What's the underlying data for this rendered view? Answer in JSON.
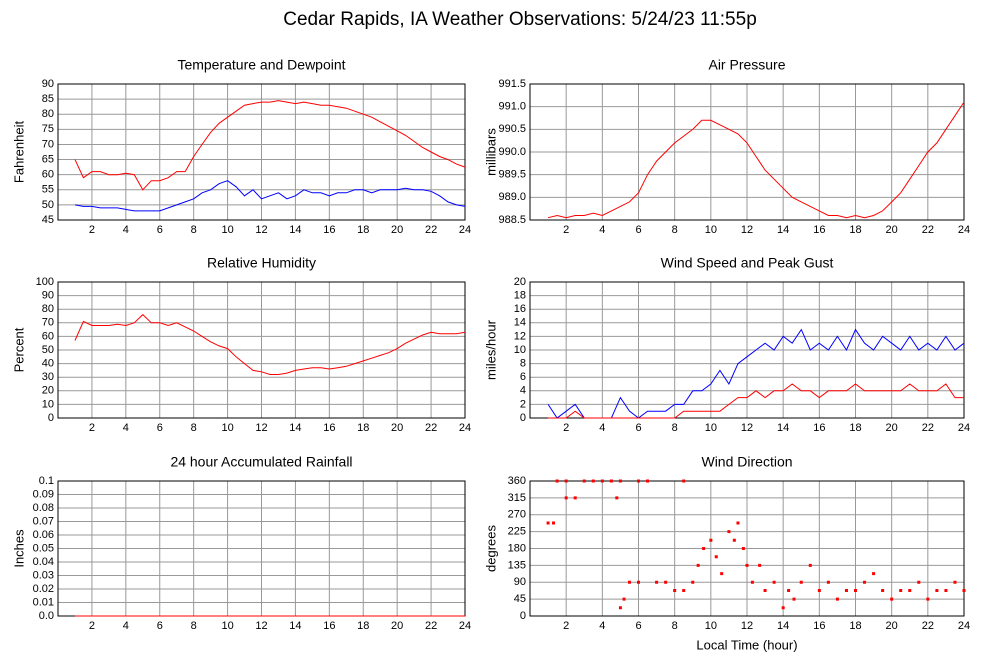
{
  "title": "Cedar Rapids, IA Weather Observations: 5/24/23 11:55p",
  "chart_data": [
    {
      "type": "line",
      "title": "Temperature and Dewpoint",
      "ylabel": "Fahrenheit",
      "x": [
        1,
        1.5,
        2,
        2.5,
        3,
        3.5,
        4,
        4.5,
        5,
        5.5,
        6,
        6.5,
        7,
        7.5,
        8,
        8.5,
        9,
        9.5,
        10,
        10.5,
        11,
        11.5,
        12,
        12.5,
        13,
        13.5,
        14,
        14.5,
        15,
        15.5,
        16,
        16.5,
        17,
        17.5,
        18,
        18.5,
        19,
        19.5,
        20,
        20.5,
        21,
        21.5,
        22,
        22.5,
        23,
        23.5,
        24
      ],
      "series": [
        {
          "color": "#ff0000",
          "values": [
            65,
            59,
            61,
            61,
            60,
            60,
            60.5,
            60,
            55,
            58,
            58,
            59,
            61,
            61,
            66,
            70,
            74,
            77,
            79,
            81,
            83,
            83.5,
            84,
            84,
            84.5,
            84,
            83.5,
            84,
            83.5,
            83,
            83,
            82.5,
            82,
            81,
            80,
            79,
            77.5,
            76,
            74.5,
            73,
            71,
            69,
            67.5,
            66,
            65,
            63.5,
            62.5
          ]
        },
        {
          "color": "#0000ff",
          "values": [
            50,
            49.5,
            49.5,
            49,
            49,
            49,
            48.5,
            48,
            48,
            48,
            48,
            49,
            50,
            51,
            52,
            54,
            55,
            57,
            58,
            56,
            53,
            55,
            52,
            53,
            54,
            52,
            53,
            55,
            54,
            54,
            53,
            54,
            54,
            55,
            55,
            54,
            55,
            55,
            55,
            55.5,
            55,
            55,
            54.5,
            53,
            51,
            50,
            49.5
          ]
        }
      ],
      "xlim": [
        0,
        24
      ],
      "xticks": [
        2,
        4,
        6,
        8,
        10,
        12,
        14,
        16,
        18,
        20,
        22,
        24
      ],
      "ylim": [
        45,
        90
      ],
      "yticks": [
        45,
        50,
        55,
        60,
        65,
        70,
        75,
        80,
        85,
        90
      ],
      "grid": true
    },
    {
      "type": "line",
      "title": "Air Pressure",
      "ylabel": "millibars",
      "x": [
        1,
        1.5,
        2,
        2.5,
        3,
        3.5,
        4,
        4.5,
        5,
        5.5,
        6,
        6.5,
        7,
        7.5,
        8,
        8.5,
        9,
        9.5,
        10,
        10.5,
        11,
        11.5,
        12,
        12.5,
        13,
        13.5,
        14,
        14.5,
        15,
        15.5,
        16,
        16.5,
        17,
        17.5,
        18,
        18.5,
        19,
        19.5,
        20,
        20.5,
        21,
        21.5,
        22,
        22.5,
        23,
        23.5,
        24
      ],
      "series": [
        {
          "color": "#ff0000",
          "values": [
            988.55,
            988.6,
            988.55,
            988.6,
            988.6,
            988.65,
            988.6,
            988.7,
            988.8,
            988.9,
            989.1,
            989.5,
            989.8,
            990.0,
            990.2,
            990.35,
            990.5,
            990.7,
            990.7,
            990.6,
            990.5,
            990.4,
            990.2,
            989.9,
            989.6,
            989.4,
            989.2,
            989.0,
            988.9,
            988.8,
            988.7,
            988.6,
            988.6,
            988.55,
            988.6,
            988.55,
            988.6,
            988.7,
            988.9,
            989.1,
            989.4,
            989.7,
            990.0,
            990.2,
            990.5,
            990.8,
            991.1
          ]
        }
      ],
      "xlim": [
        0,
        24
      ],
      "xticks": [
        2,
        4,
        6,
        8,
        10,
        12,
        14,
        16,
        18,
        20,
        22,
        24
      ],
      "ylim": [
        988.5,
        991.5
      ],
      "yticks": [
        988.5,
        {
          "value": 989,
          "label": "989.0"
        },
        989.5,
        {
          "value": 990,
          "label": "990.0"
        },
        990.5,
        {
          "value": 991,
          "label": "991.0"
        },
        991.5
      ],
      "grid": true
    },
    {
      "type": "line",
      "title": "Relative Humidity",
      "ylabel": "Percent",
      "x": [
        1,
        1.5,
        2,
        2.5,
        3,
        3.5,
        4,
        4.5,
        5,
        5.5,
        6,
        6.5,
        7,
        7.5,
        8,
        8.5,
        9,
        9.5,
        10,
        10.5,
        11,
        11.5,
        12,
        12.5,
        13,
        13.5,
        14,
        14.5,
        15,
        15.5,
        16,
        16.5,
        17,
        17.5,
        18,
        18.5,
        19,
        19.5,
        20,
        20.5,
        21,
        21.5,
        22,
        22.5,
        23,
        23.5,
        24
      ],
      "series": [
        {
          "color": "#ff0000",
          "values": [
            57,
            71,
            68,
            68,
            68,
            69,
            68,
            70,
            76,
            70,
            70,
            68,
            70,
            67,
            64,
            60,
            56,
            53,
            51,
            45,
            40,
            35,
            34,
            32,
            32,
            33,
            35,
            36,
            37,
            37,
            36,
            37,
            38,
            40,
            42,
            44,
            46,
            48,
            51,
            55,
            58,
            61,
            63,
            62,
            62,
            62,
            63
          ]
        }
      ],
      "xlim": [
        0,
        24
      ],
      "xticks": [
        2,
        4,
        6,
        8,
        10,
        12,
        14,
        16,
        18,
        20,
        22,
        24
      ],
      "ylim": [
        0,
        100
      ],
      "yticks": [
        0,
        10,
        20,
        30,
        40,
        50,
        60,
        70,
        80,
        90,
        100
      ],
      "grid": true
    },
    {
      "type": "line",
      "title": "Wind Speed and Peak Gust",
      "ylabel": "miles/hour",
      "x": [
        1,
        1.5,
        2,
        2.5,
        3,
        3.5,
        4,
        4.5,
        5,
        5.5,
        6,
        6.5,
        7,
        7.5,
        8,
        8.5,
        9,
        9.5,
        10,
        10.5,
        11,
        11.5,
        12,
        12.5,
        13,
        13.5,
        14,
        14.5,
        15,
        15.5,
        16,
        16.5,
        17,
        17.5,
        18,
        18.5,
        19,
        19.5,
        20,
        20.5,
        21,
        21.5,
        22,
        22.5,
        23,
        23.5,
        24
      ],
      "series": [
        {
          "color": "#0000ff",
          "values": [
            2,
            0,
            1,
            2,
            0,
            0,
            0,
            0,
            3,
            1,
            0,
            1,
            1,
            1,
            2,
            2,
            4,
            4,
            5,
            7,
            5,
            8,
            9,
            10,
            11,
            10,
            12,
            11,
            13,
            10,
            11,
            10,
            12,
            10,
            13,
            11,
            10,
            12,
            11,
            10,
            12,
            10,
            11,
            10,
            12,
            10,
            11
          ]
        },
        {
          "color": "#ff0000",
          "values": [
            0,
            0,
            0,
            1,
            0,
            0,
            0,
            0,
            0,
            0,
            0,
            0,
            0,
            0,
            0,
            1,
            1,
            1,
            1,
            1,
            2,
            3,
            3,
            4,
            3,
            4,
            4,
            5,
            4,
            4,
            3,
            4,
            4,
            4,
            5,
            4,
            4,
            4,
            4,
            4,
            5,
            4,
            4,
            4,
            5,
            3,
            3
          ]
        }
      ],
      "xlim": [
        0,
        24
      ],
      "xticks": [
        2,
        4,
        6,
        8,
        10,
        12,
        14,
        16,
        18,
        20,
        22,
        24
      ],
      "ylim": [
        0,
        20
      ],
      "yticks": [
        0,
        2,
        4,
        6,
        8,
        10,
        12,
        14,
        16,
        18,
        20
      ],
      "grid": true
    },
    {
      "type": "line",
      "title": "24 hour Accumulated Rainfall",
      "ylabel": "Inches",
      "x": [
        1,
        1.5,
        2,
        2.5,
        3,
        3.5,
        4,
        4.5,
        5,
        5.5,
        6,
        6.5,
        7,
        7.5,
        8,
        8.5,
        9,
        9.5,
        10,
        10.5,
        11,
        11.5,
        12,
        12.5,
        13,
        13.5,
        14,
        14.5,
        15,
        15.5,
        16,
        16.5,
        17,
        17.5,
        18,
        18.5,
        19,
        19.5,
        20,
        20.5,
        21,
        21.5,
        22,
        22.5,
        23,
        23.5,
        24
      ],
      "series": [
        {
          "color": "#ff0000",
          "values": [
            0,
            0,
            0,
            0,
            0,
            0,
            0,
            0,
            0,
            0,
            0,
            0,
            0,
            0,
            0,
            0,
            0,
            0,
            0,
            0,
            0,
            0,
            0,
            0,
            0,
            0,
            0,
            0,
            0,
            0,
            0,
            0,
            0,
            0,
            0,
            0,
            0,
            0,
            0,
            0,
            0,
            0,
            0,
            0,
            0,
            0,
            0
          ]
        }
      ],
      "xlim": [
        0,
        24
      ],
      "xticks": [
        2,
        4,
        6,
        8,
        10,
        12,
        14,
        16,
        18,
        20,
        22,
        24
      ],
      "ylim": [
        0,
        0.1
      ],
      "yticks": [
        {
          "value": 0,
          "label": "0.0"
        },
        0.01,
        0.02,
        0.03,
        0.04,
        0.05,
        0.06,
        0.07,
        0.08,
        0.09,
        0.1
      ],
      "grid": true
    },
    {
      "type": "scatter",
      "title": "Wind Direction",
      "ylabel": "degrees",
      "xlabel": "Local Time (hour)",
      "x": [
        1,
        1.3,
        1.5,
        2,
        2,
        2.5,
        3,
        3.5,
        4,
        4.5,
        4.8,
        5,
        5,
        5.2,
        5.5,
        6,
        6,
        6.5,
        7,
        7.5,
        8,
        8.5,
        8.5,
        9,
        9.3,
        9.6,
        10,
        10.3,
        10.6,
        11,
        11.3,
        11.5,
        11.8,
        12,
        12.3,
        12.7,
        13,
        13.5,
        14,
        14.3,
        14.6,
        15,
        15.5,
        16,
        16.5,
        17,
        17.5,
        18,
        18.5,
        19,
        19.5,
        20,
        20.5,
        21,
        21.5,
        22,
        22.5,
        23,
        23.5,
        24
      ],
      "series": [
        {
          "color": "#ff0000",
          "values": [
            248,
            248,
            360,
            360,
            315,
            315,
            360,
            360,
            360,
            360,
            315,
            360,
            22,
            45,
            90,
            90,
            360,
            360,
            90,
            90,
            68,
            68,
            360,
            90,
            135,
            180,
            202,
            158,
            113,
            225,
            202,
            248,
            180,
            135,
            90,
            135,
            68,
            90,
            22,
            68,
            45,
            90,
            135,
            68,
            90,
            45,
            68,
            68,
            90,
            113,
            68,
            45,
            68,
            68,
            90,
            45,
            68,
            68,
            90,
            68
          ]
        }
      ],
      "xlim": [
        0,
        24
      ],
      "xticks": [
        2,
        4,
        6,
        8,
        10,
        12,
        14,
        16,
        18,
        20,
        22,
        24
      ],
      "ylim": [
        0,
        360
      ],
      "yticks": [
        0,
        45,
        90,
        135,
        180,
        225,
        270,
        315,
        360
      ],
      "grid": true
    }
  ]
}
